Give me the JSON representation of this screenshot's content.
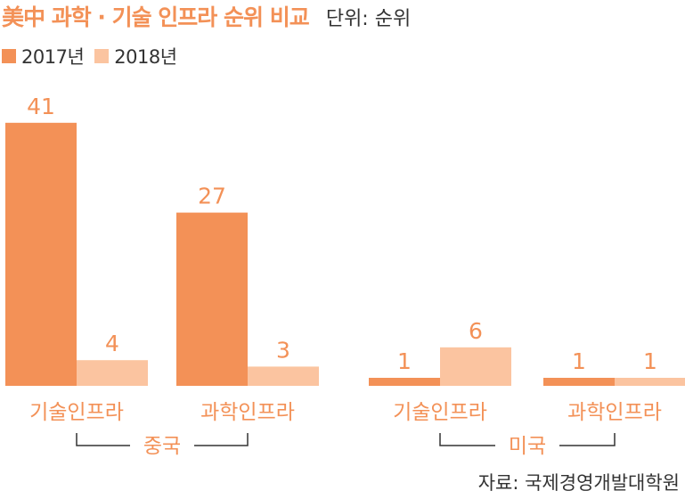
{
  "title": "美中 과학 · 기술 인프라 순위 비교",
  "unit": "단위: 순위",
  "source": "자료: 국제경영개발대학원",
  "colors": {
    "series_2017": "#f39157",
    "series_2018": "#fbc4a0",
    "accent": "#f39157",
    "text": "#333333"
  },
  "chart_data": {
    "type": "bar",
    "title": "美中 과학 · 기술 인프라 순위 비교",
    "unit": "단위: 순위",
    "categories": [
      "기술인프라",
      "과학인프라",
      "기술인프라",
      "과학인프라"
    ],
    "groups": [
      {
        "label": "중국",
        "categories": [
          0,
          1
        ]
      },
      {
        "label": "미국",
        "categories": [
          2,
          3
        ]
      }
    ],
    "series": [
      {
        "name": "2017년",
        "values": [
          41,
          27,
          1,
          1
        ]
      },
      {
        "name": "2018년",
        "values": [
          4,
          3,
          6,
          1
        ]
      }
    ],
    "ylim": [
      0,
      45
    ],
    "legend": "top-left",
    "grid": false
  }
}
